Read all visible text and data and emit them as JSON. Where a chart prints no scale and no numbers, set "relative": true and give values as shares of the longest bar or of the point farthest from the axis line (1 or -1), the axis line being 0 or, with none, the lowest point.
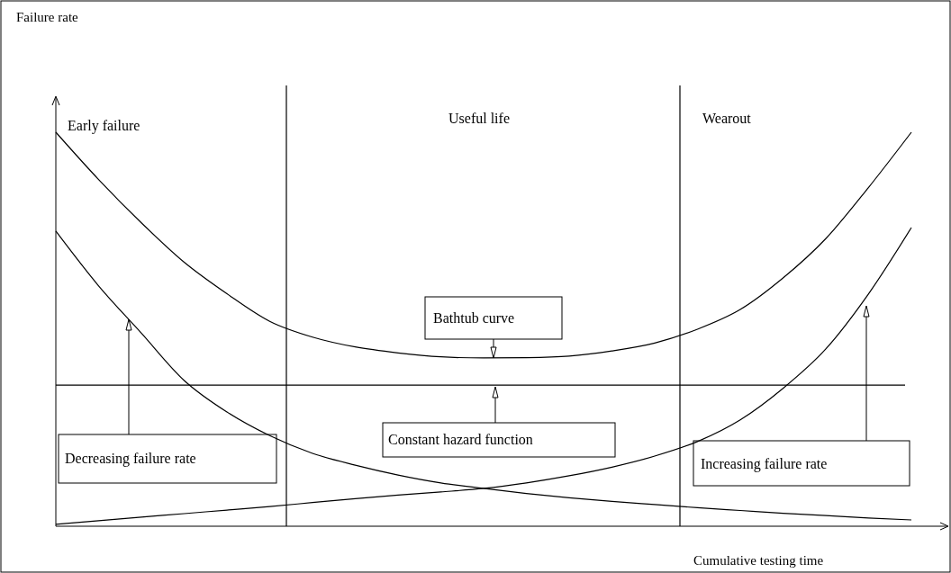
{
  "chart_data": {
    "type": "line",
    "relative": true,
    "xlabel": "Cumulative testing time",
    "categories": [
      null,
      null,
      null,
      null,
      null,
      null,
      null,
      null,
      null,
      null,
      null,
      null,
      null,
      null,
      null,
      null,
      null,
      null,
      null,
      null,
      null
    ],
    "series": [
      {
        "color": "#000000",
        "values": [
          1.0,
          0.88,
          0.77,
          0.67,
          0.59,
          0.52,
          0.48,
          0.455,
          0.44,
          0.43,
          0.427,
          0.428,
          0.432,
          0.445,
          0.465,
          0.5,
          0.55,
          0.63,
          0.73,
          0.86,
          1.0
        ]
      },
      {
        "color": "#000000",
        "values": [
          0.749,
          0.61,
          0.49,
          0.37,
          0.29,
          0.23,
          0.185,
          0.155,
          0.13,
          0.11,
          0.096,
          0.083,
          0.072,
          0.063,
          0.055,
          0.047,
          0.04,
          0.033,
          0.027,
          0.021,
          0.016
        ]
      },
      {
        "color": "#000000",
        "values": [
          0.005,
          0.014,
          0.023,
          0.032,
          0.041,
          0.05,
          0.06,
          0.07,
          0.079,
          0.087,
          0.096,
          0.11,
          0.128,
          0.15,
          0.178,
          0.215,
          0.27,
          0.35,
          0.45,
          0.59,
          0.758
        ]
      }
    ],
    "ref_lines": [
      {
        "axis": "y",
        "value": 0.358,
        "color": "#000000"
      }
    ],
    "annotations": [
      "Failure rate",
      "Early failure",
      "Useful life",
      "Wearout",
      "Bathtub curve",
      "Decreasing failure rate",
      "Constant hazard function",
      "Increasing failure rate"
    ]
  }
}
